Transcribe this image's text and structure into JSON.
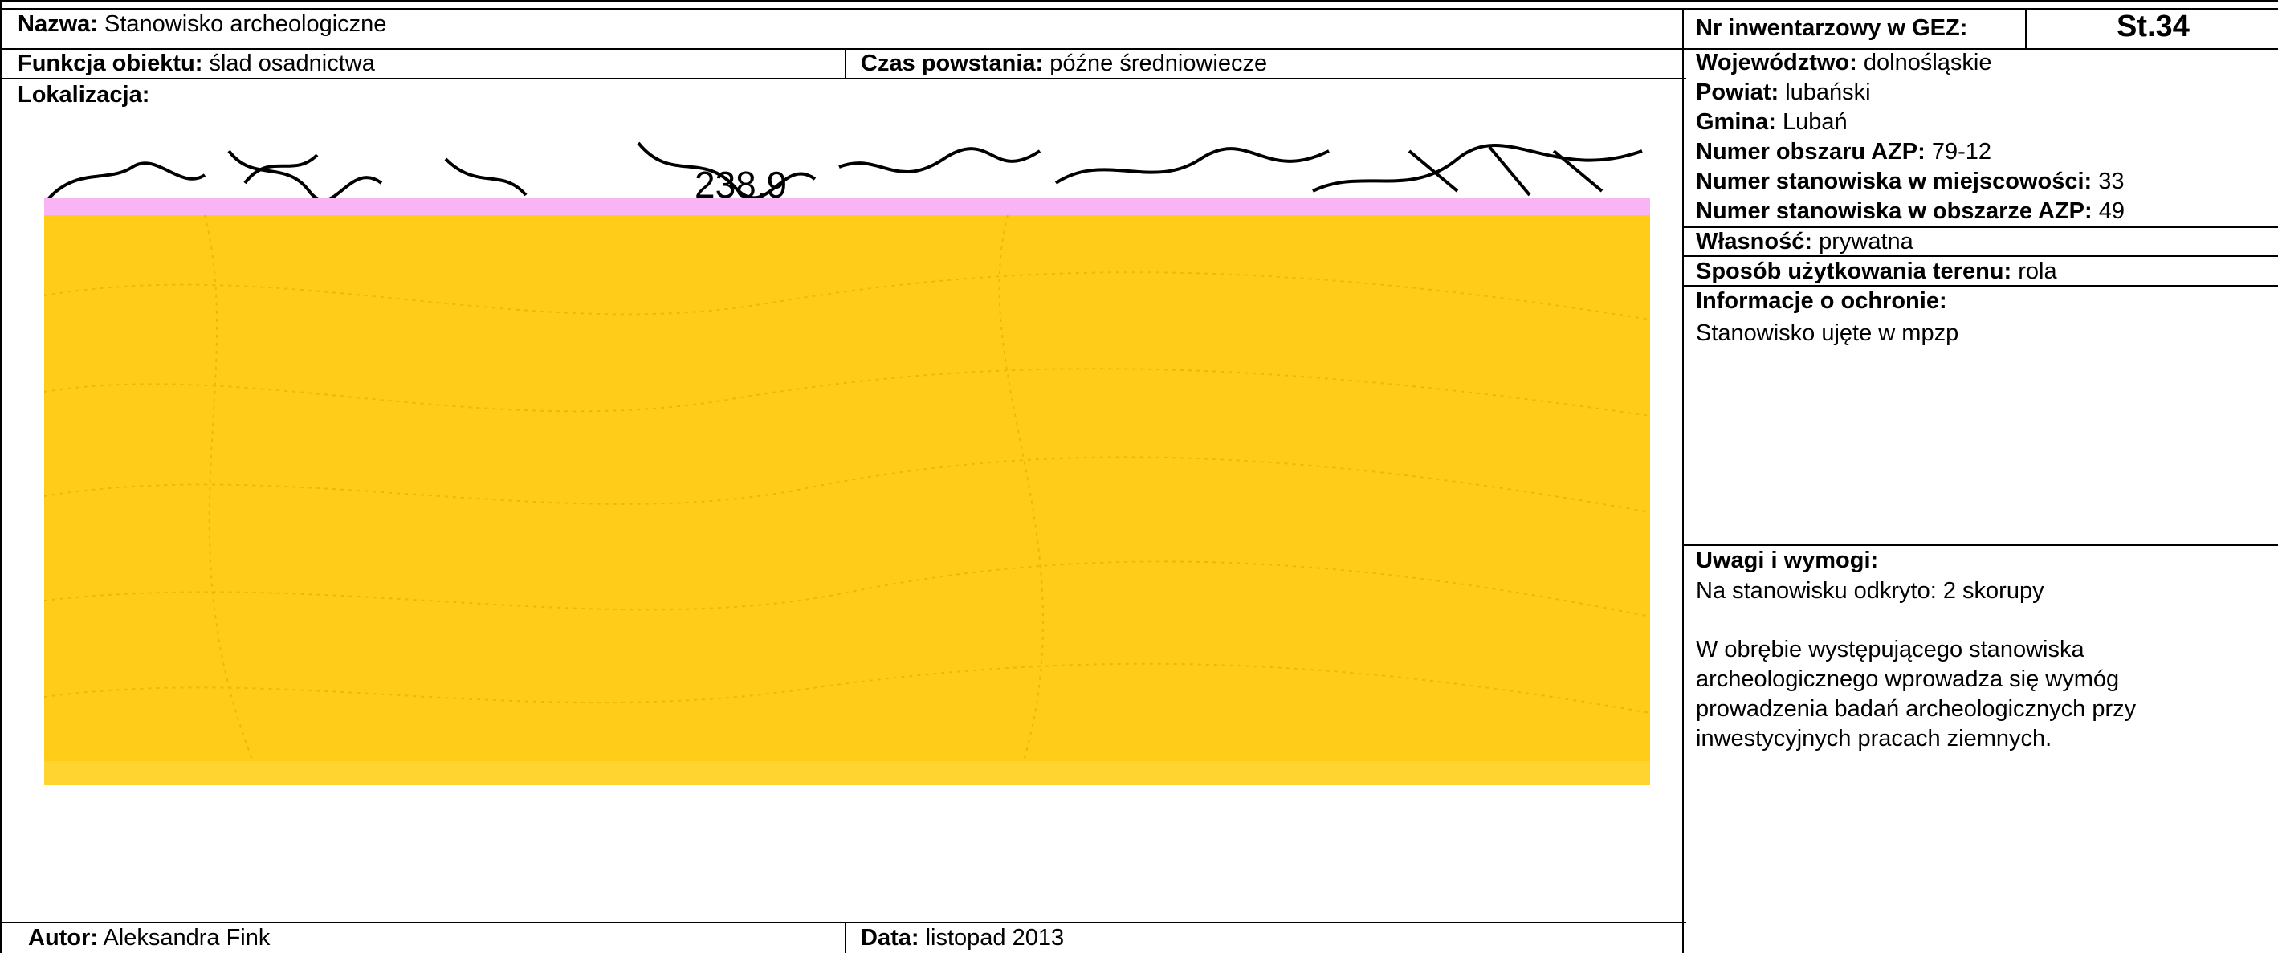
{
  "header": {
    "name_label": "Nazwa:",
    "name_value": "Stanowisko archeologiczne",
    "inv_label": "Nr inwentarzowy w GEZ:",
    "inv_value": "St.34"
  },
  "row2": {
    "function_label": "Funkcja obiektu:",
    "function_value": "ślad osadnictwa",
    "period_label": "Czas powstania:",
    "period_value": "późne średniowiecze"
  },
  "location": {
    "label": "Lokalizacja:",
    "map_number": "238.9"
  },
  "admin": {
    "voivodeship_label": "Województwo:",
    "voivodeship_value": "dolnośląskie",
    "county_label": "Powiat:",
    "county_value": "lubański",
    "commune_label": "Gmina:",
    "commune_value": "Lubań",
    "azp_area_label": "Numer obszaru AZP:",
    "azp_area_value": "79-12",
    "site_locality_label": "Numer stanowiska w miejscowości:",
    "site_locality_value": "33",
    "site_azp_label": "Numer stanowiska w obszarze AZP:",
    "site_azp_value": "49"
  },
  "ownership": {
    "label": "Własność:",
    "value": "prywatna"
  },
  "land_use": {
    "label": "Sposób użytkowania terenu:",
    "value": "rola"
  },
  "protection": {
    "label": "Informacje o ochronie:",
    "text": "Stanowisko ujęte w mpzp"
  },
  "remarks": {
    "label": "Uwagi i wymogi:",
    "line1": "Na stanowisku odkryto: 2 skorupy",
    "para": [
      "W obrębie występującego stanowiska",
      "archeologicznego wprowadza się wymóg",
      "prowadzenia badań archeologicznych przy",
      "inwestycyjnych pracach ziemnych."
    ]
  },
  "footer": {
    "author_label": "Autor:",
    "author_value": "Aleksandra Fink",
    "date_label": "Data:",
    "date_value": "listopad 2013"
  },
  "colors": {
    "map_fill": "#ffcc1a",
    "map_band": "#f9b4f6"
  }
}
